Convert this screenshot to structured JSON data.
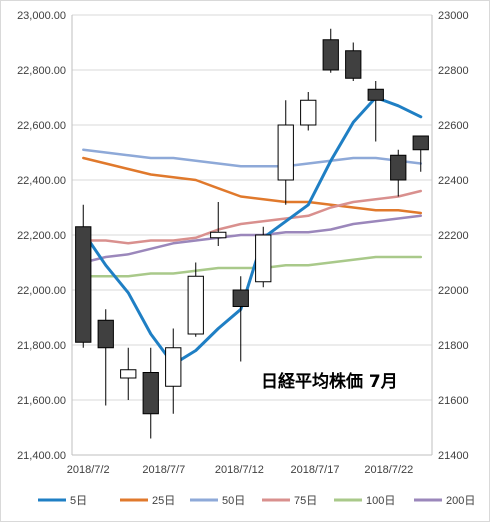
{
  "chart_data": {
    "type": "candlestick",
    "title": "日経平均株価 7月",
    "ylim": [
      21400,
      23000
    ],
    "y_ticks_left": [
      "21,400.00",
      "21,600.00",
      "21,800.00",
      "22,000.00",
      "22,200.00",
      "22,400.00",
      "22,600.00",
      "22,800.00",
      "23,000.00"
    ],
    "y_ticks_right": [
      "21400",
      "21600",
      "21800",
      "22000",
      "22200",
      "22400",
      "22600",
      "22800",
      "23000"
    ],
    "x_ticks": [
      "2018/7/2",
      "2018/7/7",
      "2018/7/12",
      "2018/7/17",
      "2018/7/22"
    ],
    "grid": "horizontal",
    "legend_position": "bottom",
    "candles": [
      {
        "date": "2018/7/2",
        "open": 22230,
        "high": 22310,
        "low": 21790,
        "close": 21810
      },
      {
        "date": "2018/7/3",
        "open": 21890,
        "high": 21930,
        "low": 21580,
        "close": 21790
      },
      {
        "date": "2018/7/4",
        "open": 21680,
        "high": 21790,
        "low": 21600,
        "close": 21710
      },
      {
        "date": "2018/7/5",
        "open": 21700,
        "high": 21790,
        "low": 21460,
        "close": 21550
      },
      {
        "date": "2018/7/6",
        "open": 21650,
        "high": 21860,
        "low": 21550,
        "close": 21790
      },
      {
        "date": "2018/7/9",
        "open": 21840,
        "high": 22100,
        "low": 21830,
        "close": 22050
      },
      {
        "date": "2018/7/10",
        "open": 22190,
        "high": 22320,
        "low": 22160,
        "close": 22210
      },
      {
        "date": "2018/7/11",
        "open": 22000,
        "high": 22050,
        "low": 21740,
        "close": 21940
      },
      {
        "date": "2018/7/12",
        "open": 22030,
        "high": 22230,
        "low": 22010,
        "close": 22200
      },
      {
        "date": "2018/7/13",
        "open": 22400,
        "high": 22690,
        "low": 22310,
        "close": 22600
      },
      {
        "date": "2018/7/17",
        "open": 22600,
        "high": 22720,
        "low": 22580,
        "close": 22690
      },
      {
        "date": "2018/7/18",
        "open": 22910,
        "high": 22950,
        "low": 22790,
        "close": 22800
      },
      {
        "date": "2018/7/19",
        "open": 22870,
        "high": 22900,
        "low": 22760,
        "close": 22770
      },
      {
        "date": "2018/7/20",
        "open": 22730,
        "high": 22760,
        "low": 22540,
        "close": 22690
      },
      {
        "date": "2018/7/23",
        "open": 22490,
        "high": 22510,
        "low": 22340,
        "close": 22400
      },
      {
        "date": "2018/7/24",
        "open": 22560,
        "high": 22560,
        "low": 22430,
        "close": 22510
      }
    ],
    "series": [
      {
        "name": "5日",
        "color": "#1f7fc4",
        "values": [
          22210,
          22090,
          21990,
          21840,
          21730,
          21780,
          21860,
          21930,
          22190,
          22250,
          22310,
          22470,
          22610,
          22700,
          22670,
          22630
        ]
      },
      {
        "name": "25日",
        "color": "#e0792c",
        "values": [
          22480,
          22460,
          22440,
          22420,
          22410,
          22400,
          22370,
          22340,
          22330,
          22320,
          22320,
          22310,
          22300,
          22290,
          22290,
          22280
        ]
      },
      {
        "name": "50日",
        "color": "#8ea9d8",
        "values": [
          22510,
          22500,
          22490,
          22480,
          22480,
          22470,
          22460,
          22450,
          22450,
          22450,
          22460,
          22470,
          22480,
          22480,
          22470,
          22460
        ]
      },
      {
        "name": "75日",
        "color": "#d9908e",
        "values": [
          22180,
          22180,
          22170,
          22180,
          22180,
          22190,
          22220,
          22240,
          22250,
          22260,
          22270,
          22300,
          22320,
          22330,
          22340,
          22360
        ]
      },
      {
        "name": "100日",
        "color": "#a9c98a",
        "values": [
          22050,
          22050,
          22050,
          22060,
          22060,
          22070,
          22080,
          22080,
          22080,
          22090,
          22090,
          22100,
          22110,
          22120,
          22120,
          22120
        ]
      },
      {
        "name": "200日",
        "color": "#9b87bb",
        "values": [
          22100,
          22120,
          22130,
          22150,
          22170,
          22180,
          22190,
          22200,
          22200,
          22210,
          22210,
          22220,
          22240,
          22250,
          22260,
          22270
        ]
      }
    ]
  }
}
